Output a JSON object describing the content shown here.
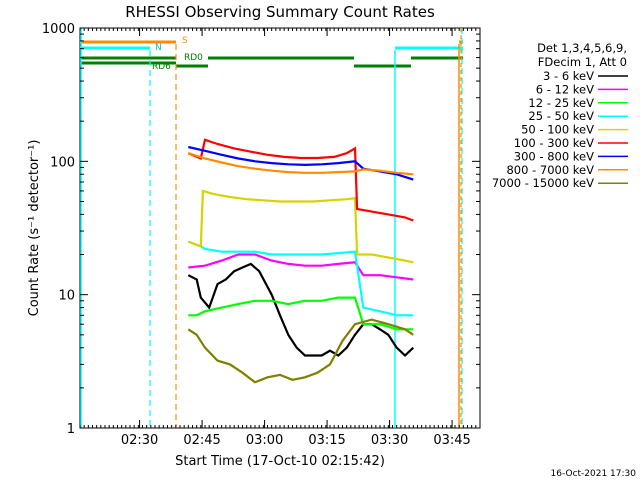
{
  "chart_data": {
    "type": "line",
    "title": "RHESSI Observing Summary Count Rates",
    "xlabel": "Start Time (17-Oct-10 02:15:42)",
    "ylabel": "Count Rate (s⁻¹ detector⁻¹)",
    "yscale": "log",
    "ylim": [
      1,
      1000
    ],
    "xlim_minutes": [
      0,
      96
    ],
    "x_tick_labels": [
      "02:30",
      "02:45",
      "03:00",
      "03:15",
      "03:30",
      "03:45"
    ],
    "x_tick_minutes": [
      14.3,
      29.3,
      44.3,
      59.3,
      74.3,
      89.3
    ],
    "y_tick_labels": [
      "1",
      "10",
      "100",
      "1000"
    ],
    "y_tick_values": [
      1,
      10,
      100,
      1000
    ],
    "legend_header": [
      "Det 1,3,4,5,6,9,",
      "FDecim 1, Att 0"
    ],
    "series": [
      {
        "name": "3 - 6 keV",
        "color": "#000000",
        "points": [
          [
            26,
            14
          ],
          [
            28,
            13
          ],
          [
            29,
            9.5
          ],
          [
            31,
            8
          ],
          [
            33,
            12
          ],
          [
            35,
            13
          ],
          [
            37,
            15
          ],
          [
            39,
            16
          ],
          [
            41,
            17
          ],
          [
            43,
            15
          ],
          [
            46,
            10
          ],
          [
            48,
            7
          ],
          [
            50,
            5
          ],
          [
            52,
            4
          ],
          [
            54,
            3.5
          ],
          [
            56,
            3.5
          ],
          [
            58,
            3.5
          ],
          [
            60,
            3.8
          ],
          [
            62,
            3.5
          ],
          [
            64,
            4
          ],
          [
            66,
            5
          ],
          [
            68,
            6
          ],
          [
            70,
            6
          ],
          [
            72,
            5.5
          ],
          [
            74,
            5
          ],
          [
            76,
            4
          ],
          [
            78,
            3.5
          ],
          [
            80,
            4
          ]
        ]
      },
      {
        "name": "6 - 12 keV",
        "color": "#ff00ff",
        "points": [
          [
            26,
            16
          ],
          [
            30,
            16.5
          ],
          [
            34,
            18
          ],
          [
            38,
            20
          ],
          [
            42,
            20
          ],
          [
            46,
            18
          ],
          [
            50,
            17
          ],
          [
            54,
            16.5
          ],
          [
            58,
            16.5
          ],
          [
            62,
            17
          ],
          [
            66,
            17.5
          ],
          [
            68,
            14
          ],
          [
            72,
            14
          ],
          [
            76,
            13.5
          ],
          [
            80,
            13
          ]
        ]
      },
      {
        "name": "12 - 25 keV",
        "color": "#00ff00",
        "points": [
          [
            26,
            7
          ],
          [
            28,
            7
          ],
          [
            30,
            7.5
          ],
          [
            34,
            8
          ],
          [
            38,
            8.5
          ],
          [
            42,
            9
          ],
          [
            46,
            9
          ],
          [
            50,
            8.5
          ],
          [
            54,
            9
          ],
          [
            58,
            9
          ],
          [
            62,
            9.5
          ],
          [
            66,
            9.5
          ],
          [
            68,
            6
          ],
          [
            72,
            6
          ],
          [
            76,
            5.5
          ],
          [
            80,
            5.5
          ]
        ]
      },
      {
        "name": "25 - 50 keV",
        "color": "#00ffff",
        "points": [
          [
            26,
            25
          ],
          [
            29,
            23
          ],
          [
            30,
            22
          ],
          [
            34,
            21
          ],
          [
            38,
            21
          ],
          [
            42,
            21
          ],
          [
            46,
            20
          ],
          [
            50,
            20
          ],
          [
            54,
            20
          ],
          [
            58,
            20
          ],
          [
            62,
            20.5
          ],
          [
            66,
            21
          ],
          [
            68,
            8
          ],
          [
            72,
            7.5
          ],
          [
            76,
            7
          ],
          [
            80,
            7
          ]
        ]
      },
      {
        "name": "50 - 100 keV",
        "color": "#d4d400",
        "points": [
          [
            26,
            25
          ],
          [
            29,
            23
          ],
          [
            29.5,
            60
          ],
          [
            32,
            57
          ],
          [
            36,
            54
          ],
          [
            40,
            52
          ],
          [
            44,
            51
          ],
          [
            48,
            50
          ],
          [
            52,
            50
          ],
          [
            56,
            50
          ],
          [
            60,
            51
          ],
          [
            64,
            52
          ],
          [
            66,
            53
          ],
          [
            66.5,
            20
          ],
          [
            70,
            20
          ],
          [
            74,
            19
          ],
          [
            78,
            18
          ],
          [
            80,
            17.5
          ]
        ]
      },
      {
        "name": "100 - 300 keV",
        "color": "#ff0000",
        "points": [
          [
            26,
            115
          ],
          [
            29,
            105
          ],
          [
            30,
            145
          ],
          [
            33,
            135
          ],
          [
            37,
            125
          ],
          [
            41,
            118
          ],
          [
            45,
            112
          ],
          [
            49,
            108
          ],
          [
            53,
            106
          ],
          [
            57,
            106
          ],
          [
            61,
            108
          ],
          [
            64,
            115
          ],
          [
            66,
            125
          ],
          [
            66.5,
            44
          ],
          [
            70,
            42
          ],
          [
            74,
            40
          ],
          [
            78,
            38
          ],
          [
            80,
            36
          ]
        ]
      },
      {
        "name": "300 - 800 keV",
        "color": "#0000ff",
        "points": [
          [
            26,
            128
          ],
          [
            30,
            120
          ],
          [
            34,
            112
          ],
          [
            38,
            105
          ],
          [
            42,
            100
          ],
          [
            46,
            97
          ],
          [
            50,
            95
          ],
          [
            54,
            94
          ],
          [
            58,
            95
          ],
          [
            62,
            97
          ],
          [
            66,
            100
          ],
          [
            68,
            88
          ],
          [
            72,
            84
          ],
          [
            76,
            80
          ],
          [
            80,
            73
          ]
        ]
      },
      {
        "name": "800 - 7000 keV",
        "color": "#ff8c00",
        "points": [
          [
            26,
            115
          ],
          [
            30,
            105
          ],
          [
            34,
            98
          ],
          [
            38,
            92
          ],
          [
            42,
            88
          ],
          [
            46,
            85
          ],
          [
            50,
            83
          ],
          [
            54,
            82
          ],
          [
            58,
            82
          ],
          [
            62,
            83
          ],
          [
            66,
            84
          ],
          [
            68,
            87
          ],
          [
            72,
            85
          ],
          [
            76,
            82
          ],
          [
            80,
            80
          ]
        ]
      },
      {
        "name": "7000 - 15000 keV",
        "color": "#808000",
        "points": [
          [
            26,
            5.5
          ],
          [
            28,
            5
          ],
          [
            30,
            4
          ],
          [
            33,
            3.2
          ],
          [
            36,
            3
          ],
          [
            39,
            2.6
          ],
          [
            42,
            2.2
          ],
          [
            45,
            2.4
          ],
          [
            48,
            2.5
          ],
          [
            51,
            2.3
          ],
          [
            54,
            2.4
          ],
          [
            57,
            2.6
          ],
          [
            60,
            3
          ],
          [
            63,
            4.5
          ],
          [
            66,
            6
          ],
          [
            70,
            6.5
          ],
          [
            74,
            6
          ],
          [
            78,
            5.5
          ],
          [
            80,
            5
          ]
        ]
      }
    ],
    "flags": [
      {
        "label": "S",
        "color": "#ff8c00"
      },
      {
        "label": "N",
        "color": "#00ffff"
      },
      {
        "label": "RD6",
        "color": "#008000"
      },
      {
        "label": "RD0",
        "color": "#008000"
      }
    ]
  },
  "timestamp": "16-Oct-2021 17:30"
}
